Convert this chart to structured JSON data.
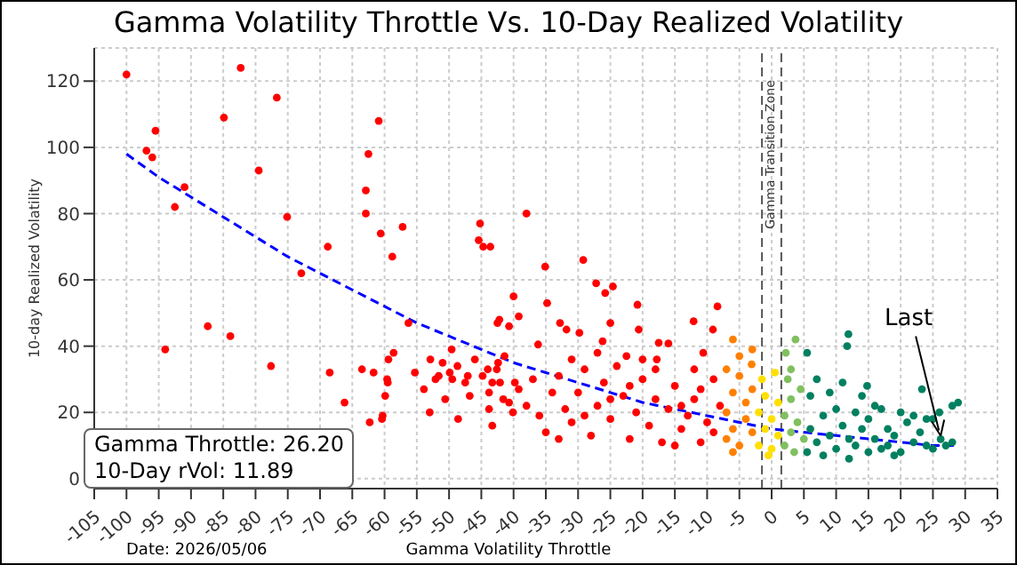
{
  "chart_data": {
    "type": "scatter",
    "title": "Gamma Volatility Throttle Vs. 10-Day Realized Volatility",
    "xlabel": "Gamma Volatility Throttle",
    "ylabel": "10-day Realized Volatility",
    "xlim": [
      -105,
      35
    ],
    "xticks": [
      -105,
      -100,
      -95,
      -90,
      -85,
      -80,
      -75,
      -70,
      -65,
      -60,
      -55,
      -50,
      -45,
      -40,
      -35,
      -30,
      -25,
      -20,
      -15,
      -10,
      -5,
      0,
      5,
      10,
      15,
      20,
      25,
      30,
      35
    ],
    "ylim": [
      -3,
      130
    ],
    "yticks": [
      0,
      20,
      40,
      60,
      80,
      100,
      120
    ],
    "grid": true,
    "marker": "circle",
    "ref_lines": [
      {
        "axis": "x",
        "value": -1.5,
        "label": "Gamma Transition Zone",
        "color": "#555555",
        "line_style": "dashed"
      },
      {
        "axis": "x",
        "value": 1.5,
        "label": null,
        "color": "#555555",
        "line_style": "dashed"
      }
    ],
    "annotations": [
      "Gamma Throttle: 26.20",
      "10-Day rVol: 11.89",
      "Date: 2026/05/06",
      {
        "text": "Last",
        "x": 26.2,
        "y": 11.89
      }
    ],
    "series": [
      {
        "color": "#ff0000",
        "x": [
          -100,
          -96.9,
          -96,
          -95.5,
          -94,
          -92.5,
          -91,
          -87.4,
          -84.9,
          -83.9,
          -82.3,
          -79.5,
          -77.6,
          -76.7,
          -75.1,
          -72.9,
          -68.8,
          -68.5,
          -66.2,
          -63.5,
          -62.9,
          -62.9,
          -62.5,
          -62.3,
          -61.7,
          -60.9,
          -60.6,
          -60.4,
          -60.3,
          -59.9,
          -59.6,
          -59.5,
          -59.4,
          -58.8,
          -58.6,
          -57.2,
          -56.3,
          -55.3,
          -53.9,
          -53,
          -52.9,
          -52.1,
          -51.6,
          -51,
          -50.6,
          -49.9,
          -49.6,
          -49.5,
          -48.7,
          -48.6,
          -47.5,
          -47.1,
          -46.8,
          -46,
          -45.2,
          -45.4,
          -44.7,
          -43.6,
          -44.8,
          -44,
          -43.8,
          -43.8,
          -43.3,
          -43.3,
          -42.6,
          -42.5,
          -42.2,
          -42.4,
          -42.1,
          -41.4,
          -41.6,
          -40.7,
          -40.7,
          -40,
          -40.1,
          -39.8,
          -39.2,
          -39.2,
          -38,
          -35.1,
          -34.8,
          -36.2,
          -32.8,
          -31.8,
          -29.8,
          -29.2,
          -27.2,
          -24.6,
          -25.8,
          -26.2,
          -25,
          -20.8,
          -20.6,
          -17.5,
          -16,
          -22.5,
          -17.8,
          -12.1,
          -9.1,
          -8.4,
          -10.6,
          -38,
          -37,
          -36,
          -35,
          -34,
          -33,
          -32,
          -31,
          -30,
          -29,
          -28,
          -27,
          -26,
          -25,
          -24,
          -23,
          -22,
          -21,
          -20,
          -19,
          -18,
          -17,
          -16,
          -15,
          -14,
          -13,
          -12,
          -11,
          -10,
          -9,
          -9,
          -8,
          -12,
          -15,
          -20,
          -27,
          -31,
          -33,
          -18,
          -11,
          -14,
          -22,
          -25,
          -29
        ],
        "values": [
          122,
          99,
          97,
          105,
          39,
          82,
          88,
          46,
          109,
          43,
          124,
          93,
          34,
          115,
          79,
          62,
          70,
          32,
          23,
          33,
          87,
          80,
          98,
          17,
          32,
          108,
          74,
          18,
          19,
          25,
          30,
          29,
          36,
          67,
          38,
          76,
          47,
          32,
          27,
          20,
          36,
          30,
          31,
          35,
          24,
          32,
          39,
          30,
          34,
          18,
          29,
          31,
          25,
          36,
          77,
          72,
          70,
          70,
          31,
          33,
          26,
          21,
          29,
          16,
          33,
          47,
          48,
          35,
          29,
          37,
          24,
          46,
          23,
          55,
          20,
          29,
          49,
          27,
          80,
          64,
          53,
          40.5,
          47,
          45,
          44,
          66,
          59,
          58,
          56,
          41.5,
          47,
          52.5,
          45,
          41,
          40.8,
          37,
          36,
          47.5,
          45,
          52,
          38,
          22,
          30,
          19,
          14,
          26,
          31,
          21,
          17,
          26,
          33,
          13,
          22,
          29,
          18,
          34,
          25,
          12,
          20,
          30,
          16,
          24,
          11,
          21,
          28,
          15,
          19,
          24,
          11,
          17,
          30,
          14,
          22,
          33,
          10,
          36,
          38,
          36,
          12,
          33,
          27,
          22,
          28,
          24,
          19
        ]
      },
      {
        "color": "#ff8000",
        "x": [
          -7,
          -7,
          -6,
          -6,
          -5,
          -5,
          -4,
          -4,
          -3,
          -3,
          -7,
          -5,
          -6,
          -6,
          -3,
          -3.1
        ],
        "values": [
          12,
          20,
          26,
          15,
          10,
          31,
          18,
          23,
          14,
          27,
          33,
          37,
          8,
          42,
          39,
          34.5
        ]
      },
      {
        "color": "#ffe000",
        "x": [
          -2,
          -2,
          -1.5,
          -1,
          -1,
          0,
          0,
          0.5,
          1,
          1,
          -0.5
        ],
        "values": [
          10,
          20,
          30,
          15,
          25,
          9,
          18,
          32,
          13,
          23,
          7
        ]
      },
      {
        "color": "#80c060",
        "x": [
          2,
          2,
          2.5,
          3,
          3,
          3.5,
          4,
          4.5,
          5,
          3,
          3.7,
          2.2
        ],
        "values": [
          10,
          19,
          30,
          14,
          24,
          8,
          17,
          27,
          12,
          33,
          42,
          38
        ]
      },
      {
        "color": "#008060",
        "x": [
          5.5,
          5.5,
          6,
          6,
          7,
          7,
          8,
          8,
          9,
          9,
          10,
          10,
          11,
          11,
          12,
          12,
          13,
          13,
          14,
          14,
          15,
          15,
          16,
          16,
          17,
          17,
          18,
          18,
          19,
          19,
          20,
          20,
          21,
          22,
          22,
          23,
          24,
          24,
          25,
          25,
          26,
          26.2,
          27,
          28,
          11.9,
          11.7,
          14.8,
          23.3,
          28,
          28.9
        ],
        "values": [
          38,
          8,
          15,
          25,
          11,
          30,
          19,
          7,
          13,
          26,
          9,
          21,
          16,
          29,
          6,
          12,
          20,
          10,
          25,
          15,
          8,
          18,
          12,
          22,
          9,
          21,
          15,
          10,
          13,
          7,
          8,
          20,
          17,
          11,
          19,
          14,
          10,
          18,
          9,
          18,
          20,
          11.9,
          10,
          11,
          43.6,
          40,
          28,
          27,
          22,
          23
        ]
      },
      {
        "type": "line",
        "color": "#0000ff",
        "line_style": "dashed",
        "marker": "none",
        "x": [
          -100,
          -95,
          -90,
          -85,
          -80,
          -75,
          -70,
          -65,
          -60,
          -55,
          -50,
          -45,
          -40,
          -35,
          -30,
          -25,
          -20,
          -15,
          -10,
          -5,
          0,
          5,
          10,
          15,
          20,
          25,
          29
        ],
        "values": [
          98,
          91,
          85,
          79,
          73,
          67,
          62,
          57,
          52,
          47,
          43,
          39,
          35,
          32,
          29,
          26,
          23,
          21,
          19,
          17,
          15,
          14,
          13,
          12,
          11,
          10,
          10
        ]
      }
    ]
  }
}
